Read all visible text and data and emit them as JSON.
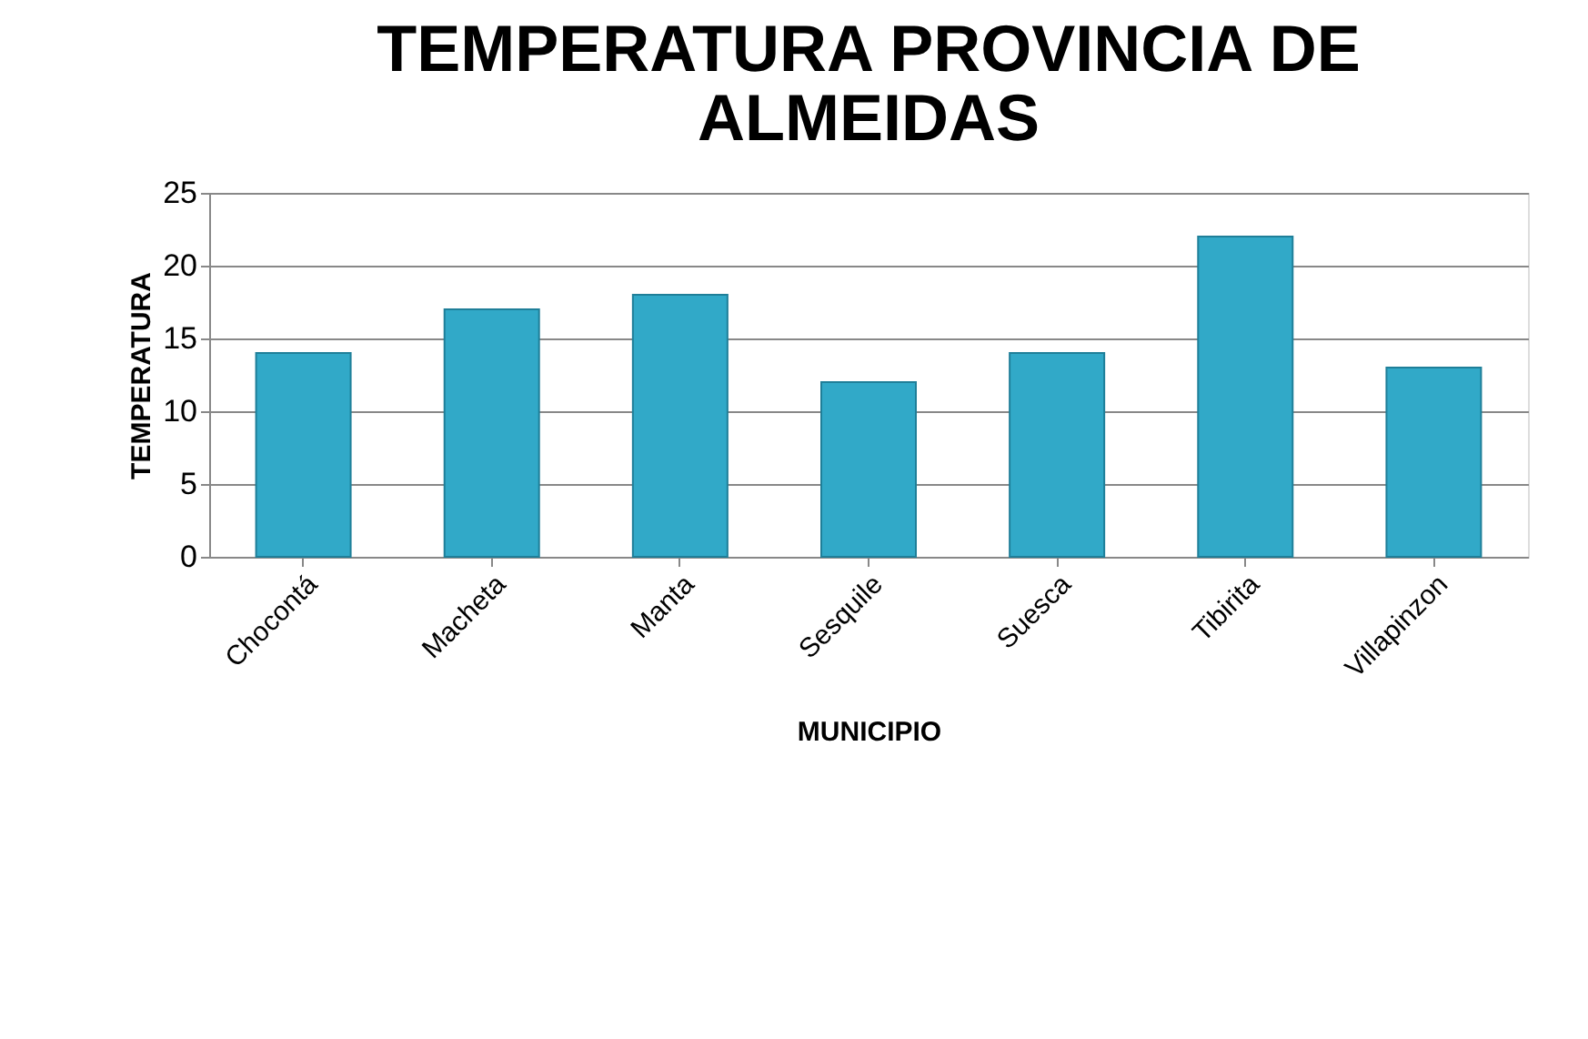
{
  "chart_data": {
    "type": "bar",
    "title": "TEMPERATURA PROVINCIA DE ALMEIDAS",
    "xlabel": "MUNICIPIO",
    "ylabel": "TEMPERATURA",
    "categories": [
      "Chocontá",
      "Macheta",
      "Manta",
      "Sesquile",
      "Suesca",
      "Tibirita",
      "Villapinzon"
    ],
    "values": [
      14,
      17,
      18,
      12,
      14,
      22,
      13
    ],
    "color": "#31a9c8",
    "ylim": [
      0,
      25
    ],
    "yticks": [
      0,
      5,
      10,
      15,
      20,
      25
    ],
    "grid": "y"
  }
}
